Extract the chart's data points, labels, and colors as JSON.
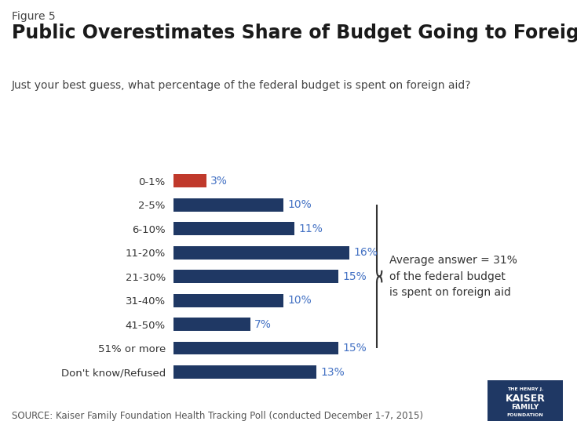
{
  "figure_label": "Figure 5",
  "title": "Public Overestimates Share of Budget Going to Foreign Aid",
  "subtitle": "Just your best guess, what percentage of the federal budget is spent on foreign aid?",
  "source": "SOURCE: Kaiser Family Foundation Health Tracking Poll (conducted December 1-7, 2015)",
  "categories": [
    "0-1%",
    "2-5%",
    "6-10%",
    "11-20%",
    "21-30%",
    "31-40%",
    "41-50%",
    "51% or more",
    "Don't know/Refused"
  ],
  "values": [
    3,
    10,
    11,
    16,
    15,
    10,
    7,
    15,
    13
  ],
  "bar_colors": [
    "#c0392b",
    "#1f3864",
    "#1f3864",
    "#1f3864",
    "#1f3864",
    "#1f3864",
    "#1f3864",
    "#1f3864",
    "#1f3864"
  ],
  "value_color": "#4472c4",
  "annotation_text": "Average answer = 31%\nof the federal budget\nis spent on foreign aid",
  "background_color": "#ffffff",
  "title_fontsize": 17,
  "figure_label_fontsize": 10,
  "bar_label_fontsize": 10,
  "annotation_fontsize": 10,
  "subtitle_fontsize": 10,
  "source_fontsize": 8.5
}
